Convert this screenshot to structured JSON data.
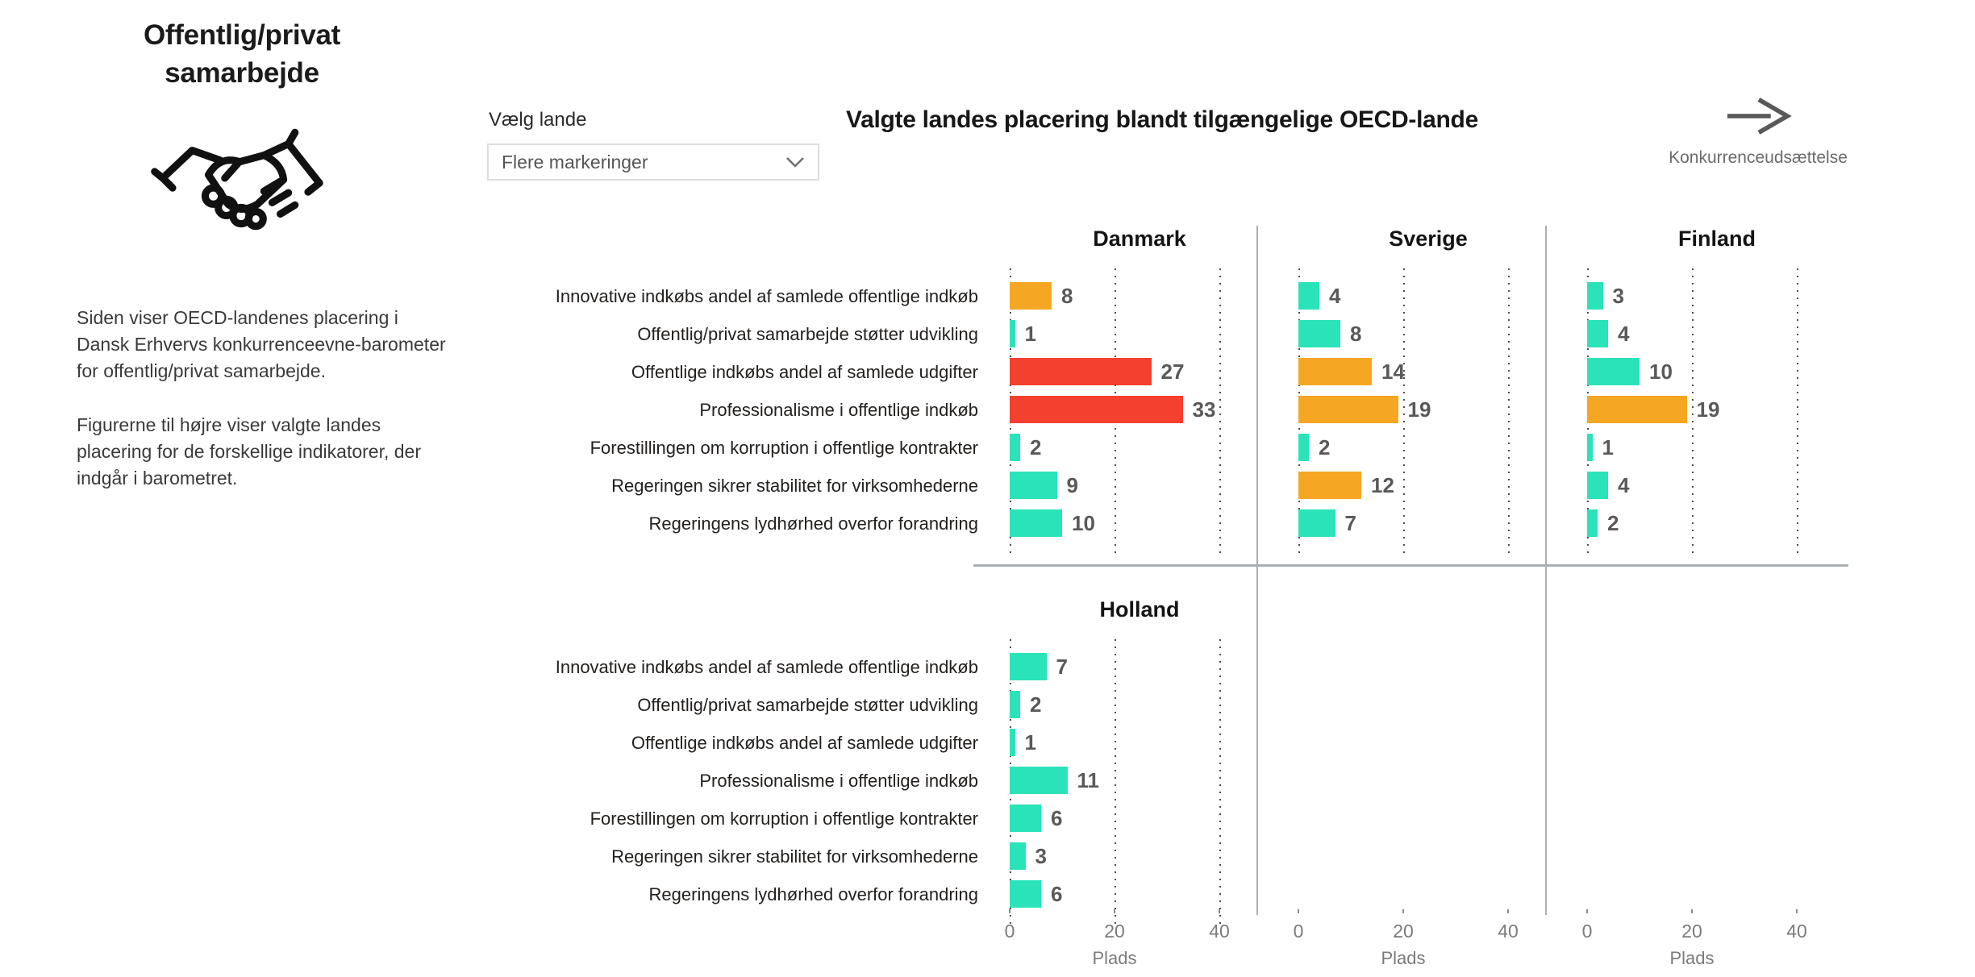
{
  "page": {
    "sidebar": {
      "title": "Offentlig/privat samarbejde",
      "icon": "handshake-icon",
      "paragraphs": [
        "Siden viser OECD-landenes placering i Dansk Erhvervs konkurrenceevne-barometer for offentlig/privat samarbejde.",
        "Figurerne til højre viser valgte landes placering for de forskellige indikatorer, der indgår i barometret."
      ]
    },
    "country_select": {
      "label": "Vælg lande",
      "value": "Flere markeringer"
    },
    "nav_link": {
      "label": "Konkurrenceudsættelse",
      "icon": "arrow-right-icon"
    }
  },
  "chart_data": {
    "type": "bar",
    "orientation": "horizontal",
    "title": "Valgte landes placering blandt tilgængelige OECD-lande",
    "xlabel": "Plads",
    "x_ticks": [
      0,
      20,
      40
    ],
    "xlim": [
      0,
      44
    ],
    "grid": "vertical-dotted",
    "legend": "none",
    "categories": [
      "Innovative indkøbs andel af samlede offentlige indkøb",
      "Offentlig/privat samarbejde støtter udvikling",
      "Offentlige indkøbs andel af samlede udgifter",
      "Professionalisme i offentlige indkøb",
      "Forestillingen om korruption i offentlige kontrakter",
      "Regeringen sikrer stabilitet for virksomhederne",
      "Regeringens lydhørhed overfor forandring"
    ],
    "palette": {
      "teal": "#2BE3B9",
      "orange": "#F5A623",
      "red": "#F4402F"
    },
    "series": [
      {
        "name": "Danmark",
        "row": 0,
        "col": 0,
        "values": [
          8,
          1,
          27,
          33,
          2,
          9,
          10
        ],
        "colors": [
          "orange",
          "teal",
          "red",
          "red",
          "teal",
          "teal",
          "teal"
        ]
      },
      {
        "name": "Sverige",
        "row": 0,
        "col": 1,
        "values": [
          4,
          8,
          14,
          19,
          2,
          12,
          7
        ],
        "colors": [
          "teal",
          "teal",
          "orange",
          "orange",
          "teal",
          "orange",
          "teal"
        ]
      },
      {
        "name": "Finland",
        "row": 0,
        "col": 2,
        "values": [
          3,
          4,
          10,
          19,
          1,
          4,
          2
        ],
        "colors": [
          "teal",
          "teal",
          "teal",
          "orange",
          "teal",
          "teal",
          "teal"
        ]
      },
      {
        "name": "Holland",
        "row": 1,
        "col": 0,
        "values": [
          7,
          2,
          1,
          11,
          6,
          3,
          6
        ],
        "colors": [
          "teal",
          "teal",
          "teal",
          "teal",
          "teal",
          "teal",
          "teal"
        ]
      }
    ]
  }
}
